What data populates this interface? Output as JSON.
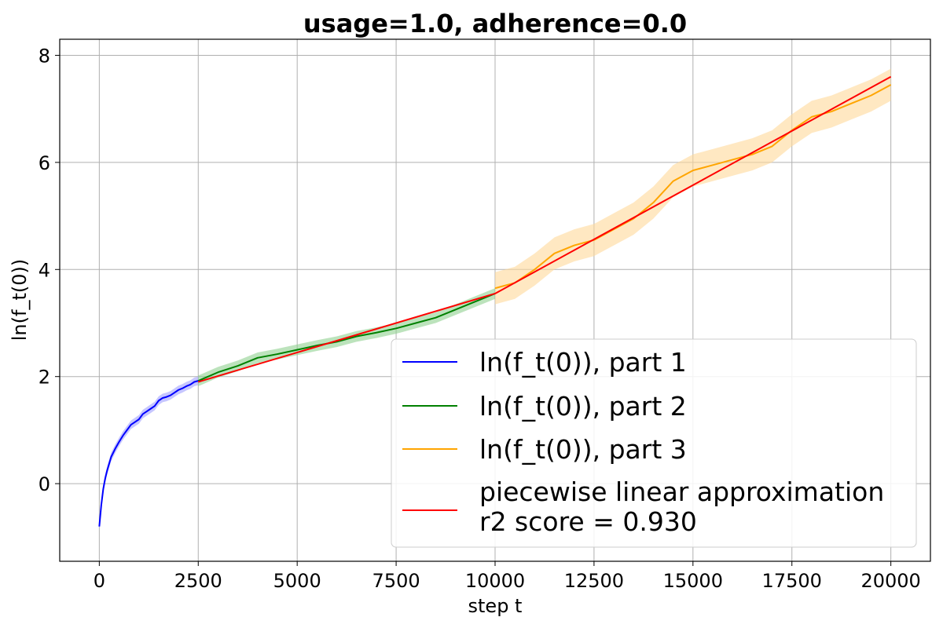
{
  "chart_data": {
    "type": "line",
    "title": "usage=1.0, adherence=0.0",
    "xlabel": "step t",
    "ylabel": "ln(f_t(0))",
    "xlim": [
      -1000,
      21000
    ],
    "ylim": [
      -1.45,
      8.3
    ],
    "xticks": [
      "0",
      "2500",
      "5000",
      "7500",
      "10000",
      "12500",
      "15000",
      "17500",
      "20000"
    ],
    "yticks": [
      "0",
      "2",
      "4",
      "6",
      "8"
    ],
    "grid": true,
    "legend_position": "lower-right",
    "legend": [
      {
        "label": "ln(f_t(0)), part 1",
        "color": "#0000ff"
      },
      {
        "label": "ln(f_t(0)), part 2",
        "color": "#008000"
      },
      {
        "label": "ln(f_t(0)), part 3",
        "color": "#ffa500"
      },
      {
        "label": "piecewise linear approximation",
        "label2": "r2 score = 0.930",
        "color": "#ff0000"
      }
    ],
    "series": [
      {
        "name": "ln(f_t(0)), part 1",
        "color": "#0000ff",
        "band_color": "#a0a0ff",
        "x": [
          0,
          50,
          100,
          150,
          200,
          300,
          400,
          500,
          600,
          700,
          800,
          900,
          1000,
          1100,
          1200,
          1300,
          1400,
          1500,
          1600,
          1700,
          1800,
          1900,
          2000,
          2100,
          2200,
          2300,
          2400,
          2500
        ],
        "y": [
          -0.8,
          -0.4,
          -0.1,
          0.1,
          0.25,
          0.5,
          0.65,
          0.78,
          0.9,
          1.0,
          1.1,
          1.15,
          1.2,
          1.3,
          1.35,
          1.4,
          1.45,
          1.55,
          1.6,
          1.62,
          1.65,
          1.7,
          1.75,
          1.78,
          1.82,
          1.85,
          1.9,
          1.92
        ],
        "band": 0.08
      },
      {
        "name": "ln(f_t(0)), part 2",
        "color": "#008000",
        "band_color": "#90d090",
        "x": [
          2500,
          3000,
          3500,
          4000,
          4500,
          5000,
          5500,
          6000,
          6500,
          7000,
          7500,
          8000,
          8500,
          9000,
          9500,
          10000
        ],
        "y": [
          1.92,
          2.08,
          2.2,
          2.35,
          2.42,
          2.5,
          2.58,
          2.65,
          2.75,
          2.82,
          2.9,
          3.0,
          3.1,
          3.25,
          3.4,
          3.55
        ],
        "band": 0.1
      },
      {
        "name": "ln(f_t(0)), part 3",
        "color": "#ffa500",
        "band_color": "#ffd89a",
        "x": [
          10000,
          10500,
          11000,
          11500,
          12000,
          12500,
          13000,
          13500,
          14000,
          14500,
          15000,
          15500,
          16000,
          16500,
          17000,
          17500,
          18000,
          18500,
          19000,
          19500,
          20000
        ],
        "y": [
          3.65,
          3.75,
          4.0,
          4.3,
          4.45,
          4.55,
          4.75,
          4.95,
          5.25,
          5.65,
          5.85,
          5.95,
          6.05,
          6.15,
          6.3,
          6.6,
          6.85,
          6.95,
          7.1,
          7.25,
          7.45
        ],
        "band": 0.3
      },
      {
        "name": "piecewise linear approximation",
        "color": "#ff0000",
        "x": [
          2500,
          10000,
          20000
        ],
        "y": [
          1.9,
          3.55,
          7.6
        ]
      }
    ]
  }
}
